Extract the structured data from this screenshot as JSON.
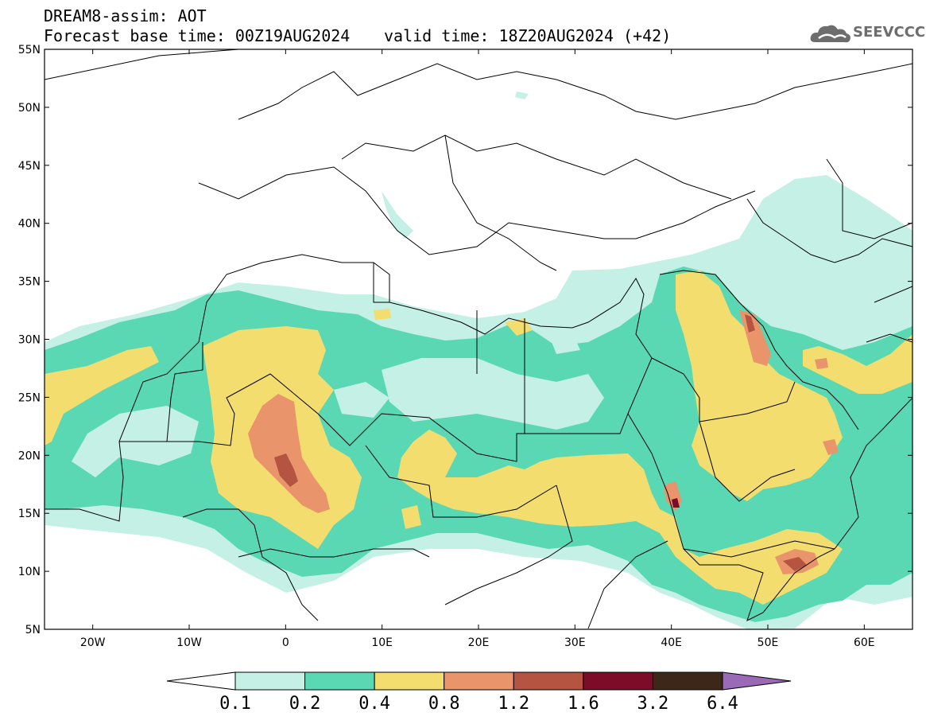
{
  "header": {
    "title": "DREAM8-assim: AOT",
    "base_time": "Forecast base time: 00Z19AUG2024",
    "valid_time": "valid time: 18Z20AUG2024 (+42)"
  },
  "logo": {
    "text": "SEEVCCC",
    "icon": "cloud-logo-icon"
  },
  "map": {
    "lon_range": [
      -25,
      65
    ],
    "lat_range": [
      5,
      55
    ],
    "lat_ticks": [
      "5N",
      "10N",
      "15N",
      "20N",
      "25N",
      "30N",
      "35N",
      "40N",
      "45N",
      "50N",
      "55N"
    ],
    "lon_ticks": [
      "20W",
      "10W",
      "0",
      "10E",
      "20E",
      "30E",
      "40E",
      "50E",
      "60E"
    ],
    "field": "Aerosol optical thickness (dust)"
  },
  "colorbar": {
    "labels": [
      "0.1",
      "0.2",
      "0.4",
      "0.8",
      "1.2",
      "1.6",
      "3.2",
      "6.4"
    ],
    "colors": [
      "#ffffff",
      "#c4f0e6",
      "#5ad8b4",
      "#f2dd6e",
      "#e9946a",
      "#b55441",
      "#7d0c29",
      "#3c2718",
      "#9a6ab7"
    ]
  },
  "colors": {
    "aot_0_1": "#c4f0e6",
    "aot_0_2": "#5ad8b4",
    "aot_0_4": "#f2dd6e",
    "aot_0_8": "#e9946a",
    "aot_1_2": "#b55441",
    "aot_1_6": "#7d0c29"
  }
}
